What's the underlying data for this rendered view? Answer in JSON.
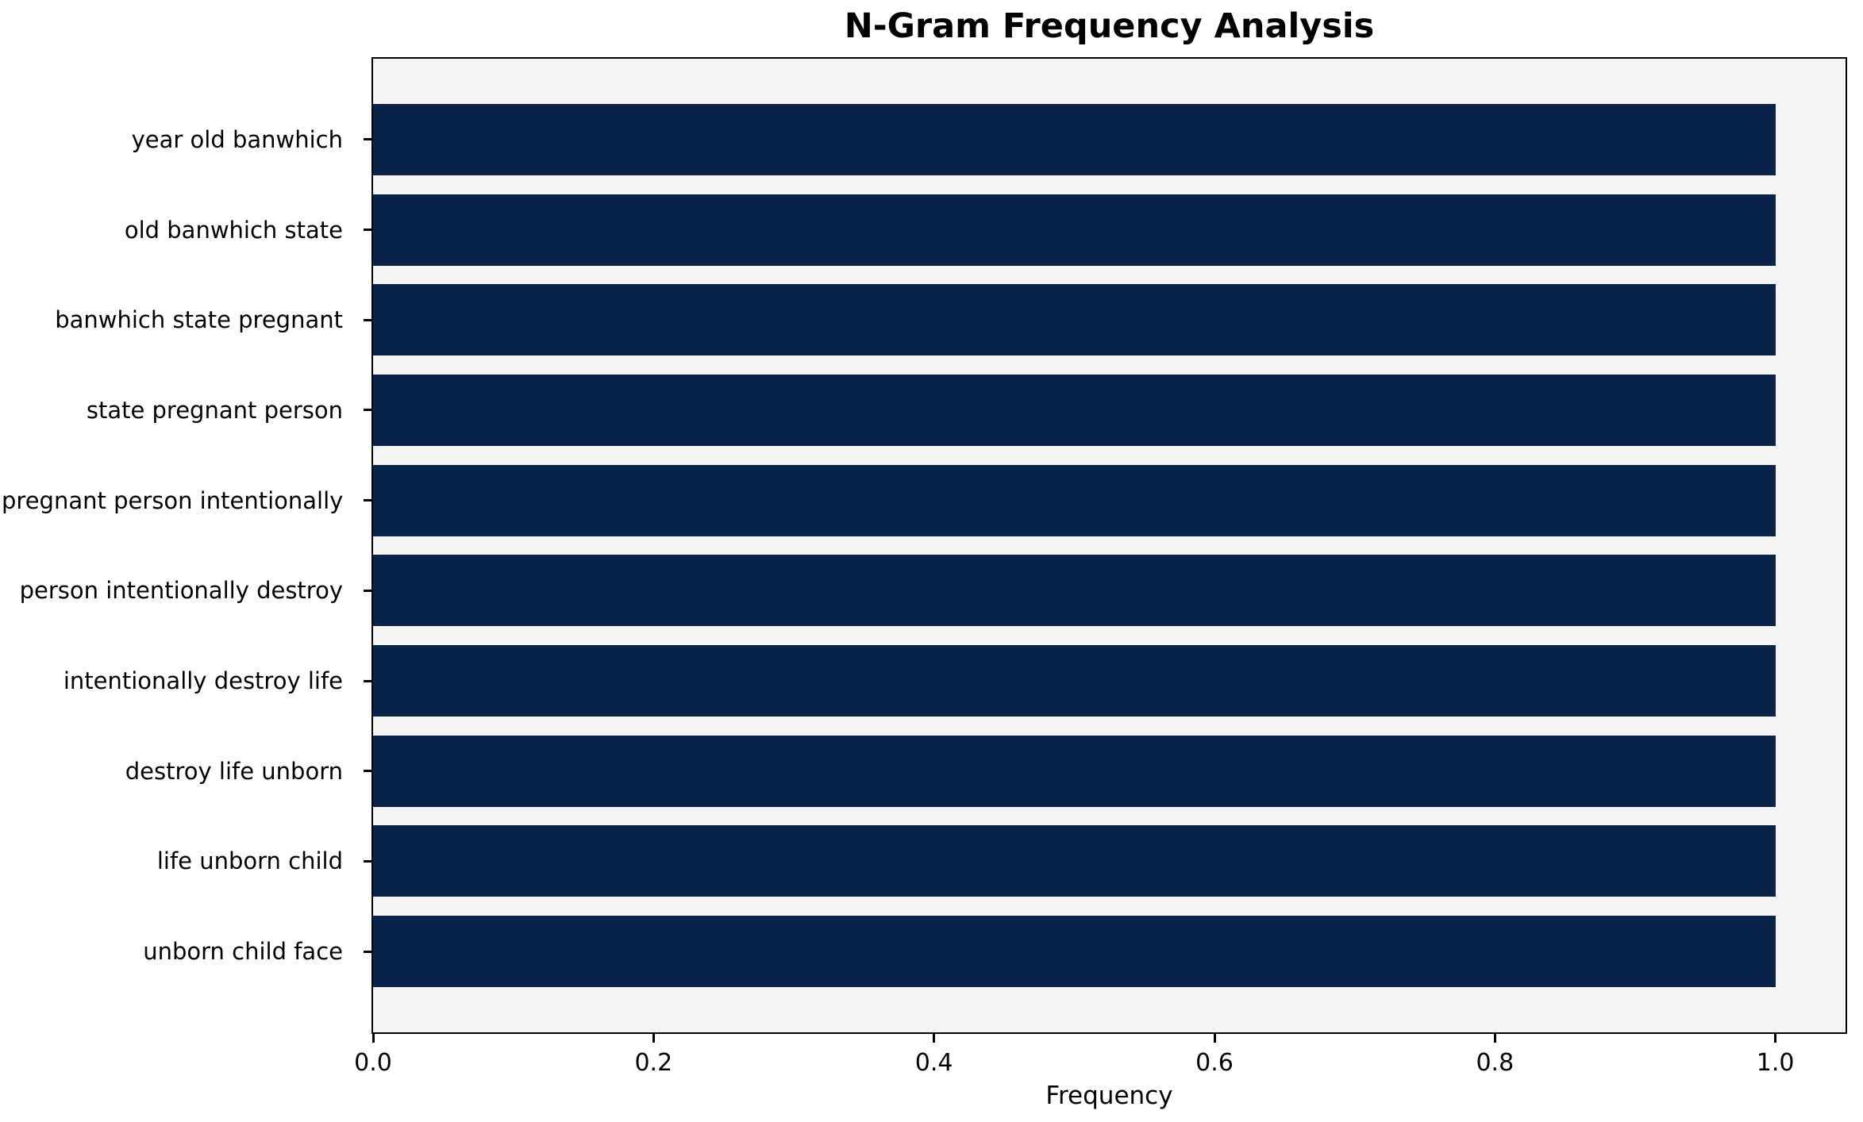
{
  "chart_data": {
    "type": "bar",
    "orientation": "horizontal",
    "title": "N-Gram Frequency Analysis",
    "xlabel": "Frequency",
    "ylabel": "",
    "categories": [
      "year old banwhich",
      "old banwhich state",
      "banwhich state pregnant",
      "state pregnant person",
      "pregnant person intentionally",
      "person intentionally destroy",
      "intentionally destroy life",
      "destroy life unborn",
      "life unborn child",
      "unborn child face"
    ],
    "values": [
      1.0,
      1.0,
      1.0,
      1.0,
      1.0,
      1.0,
      1.0,
      1.0,
      1.0,
      1.0
    ],
    "xlim": [
      0,
      1.05
    ],
    "x_ticks": [
      "0.0",
      "0.2",
      "0.4",
      "0.6",
      "0.8",
      "1.0"
    ],
    "grid": false,
    "legend": "none",
    "colors": {
      "bar": "#09234a",
      "plot_background": "#f5f5f5",
      "figure_background": "#ffffff",
      "spine": "#000000",
      "text": "#000000"
    }
  }
}
